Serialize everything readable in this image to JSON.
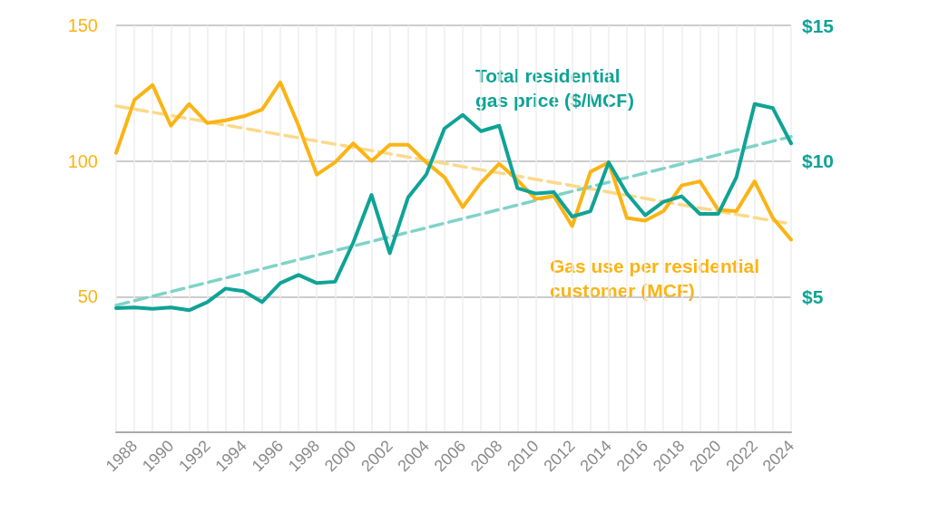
{
  "chart_data": {
    "type": "line",
    "x": [
      1987,
      1988,
      1989,
      1990,
      1991,
      1992,
      1993,
      1994,
      1995,
      1996,
      1997,
      1998,
      1999,
      2000,
      2001,
      2002,
      2003,
      2004,
      2005,
      2006,
      2007,
      2008,
      2009,
      2010,
      2011,
      2012,
      2013,
      2014,
      2015,
      2016,
      2017,
      2018,
      2019,
      2020,
      2021,
      2022,
      2023,
      2024
    ],
    "series": [
      {
        "name": "Gas use per residential customer (MCF)",
        "color": "#fbb415",
        "values": [
          103,
          122.5,
          128,
          113,
          121,
          114,
          115,
          116.5,
          119,
          129,
          113,
          95,
          99.5,
          106.5,
          100,
          106,
          106,
          99.5,
          94,
          83,
          92,
          99,
          93,
          86,
          87,
          76,
          96,
          99.5,
          79,
          78,
          81.5,
          91,
          92.5,
          82,
          81.5,
          92.5,
          79,
          71
        ]
      },
      {
        "name": "Total residential gas price ($/MCF)",
        "color": "#0fa396",
        "axis": "y2",
        "values": [
          4.58,
          4.6,
          4.55,
          4.6,
          4.5,
          4.8,
          5.3,
          5.2,
          4.8,
          5.5,
          5.8,
          5.5,
          5.55,
          7.0,
          8.75,
          6.6,
          8.65,
          9.5,
          11.2,
          11.7,
          11.1,
          11.3,
          9.0,
          8.8,
          8.85,
          7.95,
          8.15,
          9.95,
          8.8,
          8.0,
          8.5,
          8.7,
          8.05,
          8.05,
          9.4,
          12.1,
          11.95,
          10.65
        ]
      },
      {
        "color": "#fcd98a",
        "values": [
          120.3,
          null,
          null,
          null,
          null,
          null,
          null,
          null,
          null,
          null,
          null,
          null,
          null,
          null,
          null,
          null,
          null,
          null,
          null,
          null,
          null,
          null,
          null,
          null,
          null,
          null,
          null,
          null,
          null,
          null,
          null,
          null,
          null,
          null,
          null,
          null,
          null,
          76.8
        ],
        "line_style": "dashed"
      },
      {
        "color": "#7fd3c8",
        "axis": "y2",
        "values": [
          4.68,
          null,
          null,
          null,
          null,
          null,
          null,
          null,
          null,
          null,
          null,
          null,
          null,
          null,
          null,
          null,
          null,
          null,
          null,
          null,
          null,
          null,
          null,
          null,
          null,
          null,
          null,
          null,
          null,
          null,
          null,
          null,
          null,
          null,
          null,
          null,
          null,
          10.9
        ],
        "line_style": "dashed"
      }
    ],
    "xlim": [
      1987,
      2024
    ],
    "xticks": [
      {
        "value": 1987,
        "label": null
      },
      1988,
      {
        "value": 1989,
        "label": null
      },
      1990,
      {
        "value": 1991,
        "label": null
      },
      1992,
      {
        "value": 1993,
        "label": null
      },
      1994,
      {
        "value": 1995,
        "label": null
      },
      1996,
      {
        "value": 1997,
        "label": null
      },
      1998,
      {
        "value": 1999,
        "label": null
      },
      2000,
      {
        "value": 2001,
        "label": null
      },
      2002,
      {
        "value": 2003,
        "label": null
      },
      2004,
      {
        "value": 2005,
        "label": null
      },
      2006,
      {
        "value": 2007,
        "label": null
      },
      2008,
      {
        "value": 2009,
        "label": null
      },
      2010,
      {
        "value": 2011,
        "label": null
      },
      2012,
      {
        "value": 2013,
        "label": null
      },
      2014,
      {
        "value": 2015,
        "label": null
      },
      2016,
      {
        "value": 2017,
        "label": null
      },
      2018,
      {
        "value": 2019,
        "label": null
      },
      2020,
      {
        "value": 2021,
        "label": null
      },
      2022,
      {
        "value": 2023,
        "label": null
      },
      2024
    ],
    "ylim": [
      0,
      150
    ],
    "yticks": [
      {
        "value": 0,
        "label": null
      },
      50,
      100,
      150
    ],
    "y2lim": [
      0,
      15
    ],
    "y2ticks": [
      {
        "value": 0,
        "label": null
      },
      {
        "value": 5,
        "label": "$5"
      },
      {
        "value": 10,
        "label": "$10"
      },
      {
        "value": 15,
        "label": "$15"
      }
    ],
    "grid": true,
    "legend": false,
    "line_style": "solid",
    "marker": "none"
  }
}
